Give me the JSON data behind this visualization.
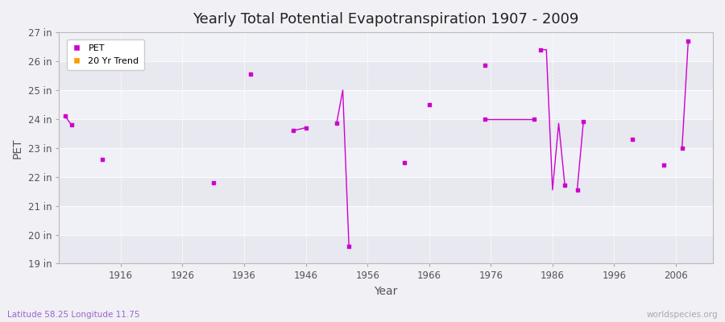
{
  "title": "Yearly Total Potential Evapotranspiration 1907 - 2009",
  "xlabel": "Year",
  "ylabel": "PET",
  "subtitle_left": "Latitude 58.25 Longitude 11.75",
  "subtitle_right": "worldspecies.org",
  "bg_color": "#f0f0f5",
  "plot_bg_color": "#ebebf2",
  "ylim": [
    19,
    27
  ],
  "xlim": [
    1906,
    2012
  ],
  "yticks": [
    19,
    20,
    21,
    22,
    23,
    24,
    25,
    26,
    27
  ],
  "xticks": [
    1916,
    1926,
    1936,
    1946,
    1956,
    1966,
    1976,
    1986,
    1996,
    2006
  ],
  "pet_color": "#cc00cc",
  "trend_color": "#ff9900",
  "connected_segments": [
    [
      [
        1907,
        24.1
      ],
      [
        1908,
        23.8
      ]
    ],
    [
      [
        1944,
        23.6
      ],
      [
        1946,
        23.7
      ]
    ],
    [
      [
        1951,
        23.85
      ],
      [
        1952,
        25.0
      ],
      [
        1953,
        19.6
      ]
    ],
    [
      [
        1975,
        24.0
      ],
      [
        1983,
        24.0
      ]
    ],
    [
      [
        1984,
        26.4
      ],
      [
        1985,
        26.4
      ],
      [
        1986,
        21.55
      ],
      [
        1987,
        23.85
      ],
      [
        1988,
        21.7
      ]
    ],
    [
      [
        1990,
        21.55
      ],
      [
        1991,
        23.9
      ]
    ],
    [
      [
        2007,
        23.0
      ],
      [
        2008,
        26.7
      ]
    ]
  ],
  "isolated_points": [
    [
      1913,
      22.6
    ],
    [
      1931,
      21.8
    ],
    [
      1937,
      25.55
    ],
    [
      1962,
      22.5
    ],
    [
      1966,
      24.5
    ],
    [
      1975,
      25.85
    ],
    [
      1999,
      23.3
    ],
    [
      2004,
      22.4
    ]
  ]
}
